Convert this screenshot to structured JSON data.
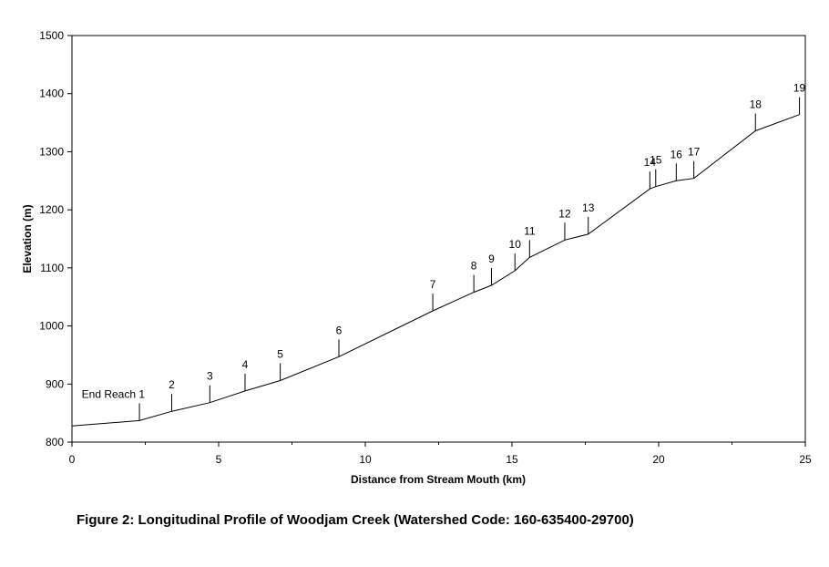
{
  "caption": "Figure 2:  Longitudinal Profile of Woodjam Creek (Watershed Code: 160-635400-29700)",
  "chart_data": {
    "type": "line",
    "xlabel": "Distance from Stream Mouth (km)",
    "ylabel": "Elevation (m)",
    "xlim": [
      0,
      25
    ],
    "ylim": [
      800,
      1500
    ],
    "xticks": [
      0,
      5,
      10,
      15,
      20,
      25
    ],
    "yticks": [
      800,
      900,
      1000,
      1100,
      1200,
      1300,
      1400,
      1500
    ],
    "grid": false,
    "series": [
      {
        "x": [
          0,
          2.3,
          3.4,
          4.7,
          5.9,
          7.1,
          9.1,
          12.3,
          13.7,
          14.3,
          15.1,
          15.6,
          16.8,
          17.6,
          19.7,
          19.9,
          20.6,
          21.2,
          23.3,
          24.8
        ],
        "y": [
          828,
          837,
          853,
          868,
          888,
          906,
          947,
          1026,
          1058,
          1070,
          1095,
          1118,
          1148,
          1158,
          1236,
          1240,
          1250,
          1254,
          1336,
          1364
        ]
      }
    ],
    "reach_markers": [
      {
        "label": "End Reach 1",
        "x": 2.3,
        "y": 837
      },
      {
        "label": "2",
        "x": 3.4,
        "y": 853
      },
      {
        "label": "3",
        "x": 4.7,
        "y": 868
      },
      {
        "label": "4",
        "x": 5.9,
        "y": 888
      },
      {
        "label": "5",
        "x": 7.1,
        "y": 906
      },
      {
        "label": "6",
        "x": 9.1,
        "y": 947
      },
      {
        "label": "7",
        "x": 12.3,
        "y": 1026
      },
      {
        "label": "8",
        "x": 13.7,
        "y": 1058
      },
      {
        "label": "9",
        "x": 14.3,
        "y": 1070
      },
      {
        "label": "10",
        "x": 15.1,
        "y": 1095
      },
      {
        "label": "11",
        "x": 15.6,
        "y": 1118
      },
      {
        "label": "12",
        "x": 16.8,
        "y": 1148
      },
      {
        "label": "13",
        "x": 17.6,
        "y": 1158
      },
      {
        "label": "14",
        "x": 19.7,
        "y": 1236
      },
      {
        "label": "15",
        "x": 19.9,
        "y": 1240
      },
      {
        "label": "16",
        "x": 20.6,
        "y": 1250
      },
      {
        "label": "17",
        "x": 21.2,
        "y": 1254
      },
      {
        "label": "18",
        "x": 23.3,
        "y": 1336
      },
      {
        "label": "19",
        "x": 24.8,
        "y": 1364
      }
    ]
  }
}
